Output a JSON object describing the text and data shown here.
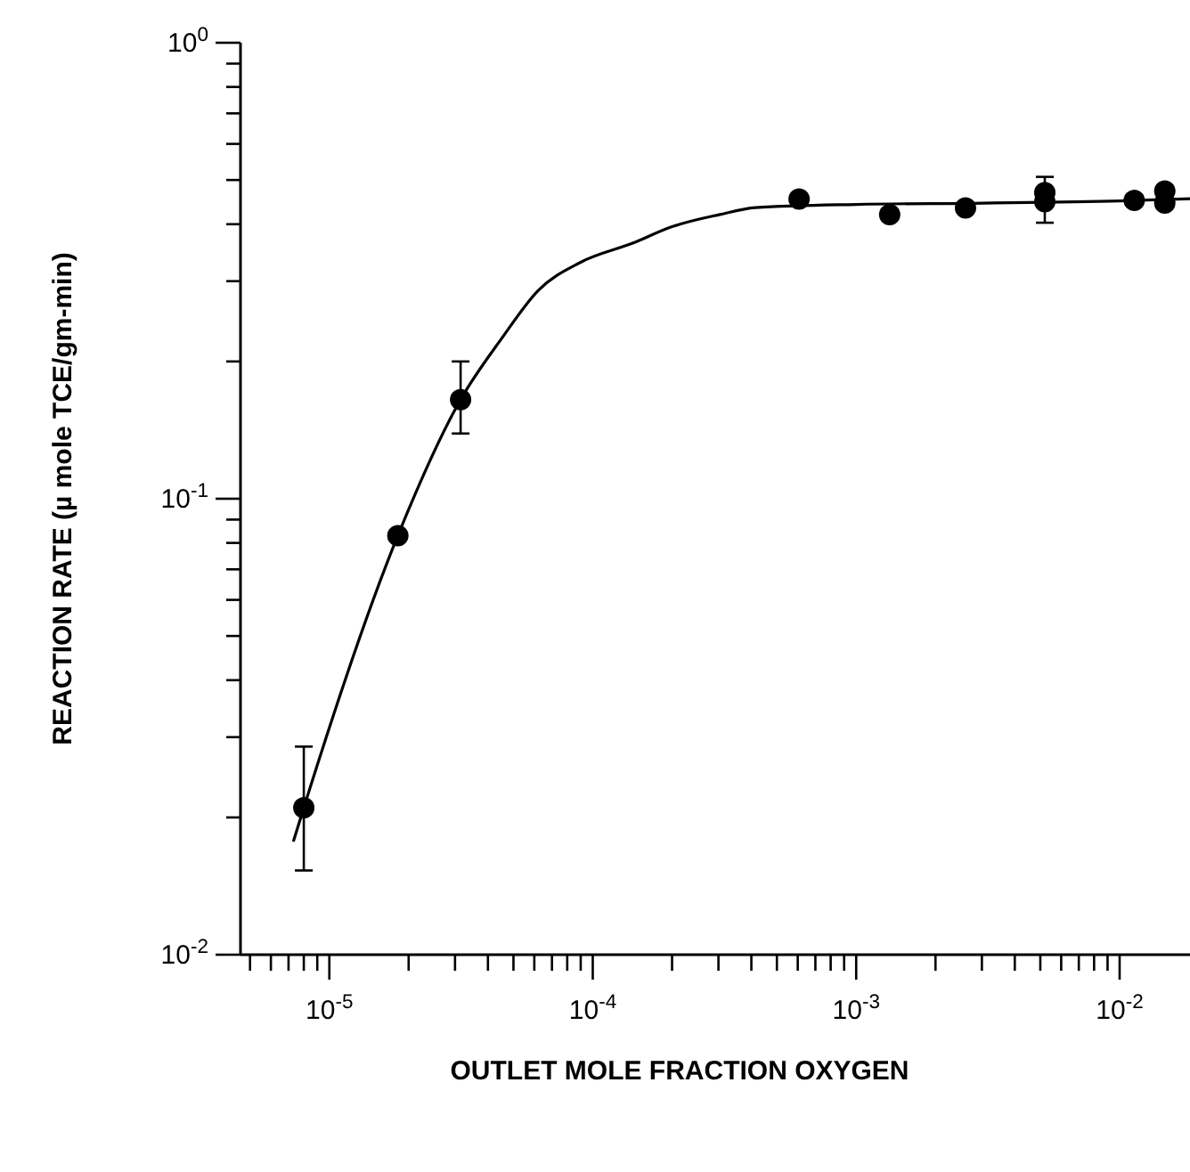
{
  "chart_data": {
    "type": "scatter",
    "xlabel": "OUTLET MOLE FRACTION OXYGEN",
    "ylabel": "REACTION RATE (µ mole TCE/gm-min)",
    "log": "xy",
    "grid": false,
    "xlim": [
      4.6e-06,
      0.0185
    ],
    "ylim": [
      0.01,
      1
    ],
    "xticks": [
      {
        "value": 5e-06,
        "label": null
      },
      {
        "value": 6e-06,
        "label": null
      },
      {
        "value": 7e-06,
        "label": null
      },
      {
        "value": 8e-06,
        "label": null
      },
      {
        "value": 9e-06,
        "label": null
      },
      {
        "value": 1e-05,
        "label": "10$^{-5}$"
      },
      {
        "value": 2e-05,
        "label": null
      },
      {
        "value": 3e-05,
        "label": null
      },
      {
        "value": 4e-05,
        "label": null
      },
      {
        "value": 5e-05,
        "label": null
      },
      {
        "value": 6e-05,
        "label": null
      },
      {
        "value": 7e-05,
        "label": null
      },
      {
        "value": 8e-05,
        "label": null
      },
      {
        "value": 9e-05,
        "label": null
      },
      {
        "value": 0.0001,
        "label": "10$^{-4}$"
      },
      {
        "value": 0.0002,
        "label": null
      },
      {
        "value": 0.0003,
        "label": null
      },
      {
        "value": 0.0004,
        "label": null
      },
      {
        "value": 0.0005,
        "label": null
      },
      {
        "value": 0.0006,
        "label": null
      },
      {
        "value": 0.0007,
        "label": null
      },
      {
        "value": 0.0008,
        "label": null
      },
      {
        "value": 0.0009,
        "label": null
      },
      {
        "value": 0.001,
        "label": "10$^{-3}$"
      },
      {
        "value": 0.002,
        "label": null
      },
      {
        "value": 0.003,
        "label": null
      },
      {
        "value": 0.004,
        "label": null
      },
      {
        "value": 0.005,
        "label": null
      },
      {
        "value": 0.006,
        "label": null
      },
      {
        "value": 0.007,
        "label": null
      },
      {
        "value": 0.008,
        "label": null
      },
      {
        "value": 0.009,
        "label": null
      },
      {
        "value": 0.01,
        "label": "10$^{-2}$"
      }
    ],
    "yticks": [
      {
        "value": 0.01,
        "label": "10$^{-2}$"
      },
      {
        "value": 0.02,
        "label": null
      },
      {
        "value": 0.03,
        "label": null
      },
      {
        "value": 0.04,
        "label": null
      },
      {
        "value": 0.05,
        "label": null
      },
      {
        "value": 0.06,
        "label": null
      },
      {
        "value": 0.07,
        "label": null
      },
      {
        "value": 0.08,
        "label": null
      },
      {
        "value": 0.09,
        "label": null
      },
      {
        "value": 0.1,
        "label": "10$^{-1}$"
      },
      {
        "value": 0.2,
        "label": null
      },
      {
        "value": 0.3,
        "label": null
      },
      {
        "value": 0.4,
        "label": null
      },
      {
        "value": 0.5,
        "label": null
      },
      {
        "value": 0.6,
        "label": null
      },
      {
        "value": 0.7,
        "label": null
      },
      {
        "value": 0.8,
        "label": null
      },
      {
        "value": 0.9,
        "label": null
      },
      {
        "value": 1,
        "label": "10$^{0}$"
      }
    ],
    "series": [
      {
        "color": "#000000",
        "marker": "circle",
        "x": [
          8e-06,
          1.82e-05,
          3.15e-05,
          0.000607,
          0.00134,
          0.0026,
          0.0052,
          0.0052,
          0.01136,
          0.01484,
          0.01484
        ],
        "values": [
          0.021,
          0.083,
          0.165,
          0.454,
          0.42,
          0.434,
          0.469,
          0.448,
          0.451,
          0.473,
          0.445
        ],
        "errors": [
          [
            0.0153,
            0.0286
          ],
          null,
          [
            0.139,
            0.2
          ],
          null,
          null,
          null,
          [
            0.403,
            0.508
          ],
          null,
          null,
          null,
          null
        ]
      },
      {
        "type": "line",
        "color": "#000000",
        "marker": "none",
        "x": [
          7.3e-06,
          8e-06,
          1.82e-05,
          3.15e-05,
          4.52e-05,
          6.2e-05,
          9e-05,
          0.000141,
          0.0002,
          0.000304,
          0.000414,
          0.001,
          0.003,
          0.01,
          0.0185
        ],
        "values": [
          0.0177,
          0.021,
          0.083,
          0.165,
          0.225,
          0.286,
          0.33,
          0.363,
          0.395,
          0.42,
          0.435,
          0.442,
          0.445,
          0.45,
          0.455
        ]
      }
    ]
  }
}
